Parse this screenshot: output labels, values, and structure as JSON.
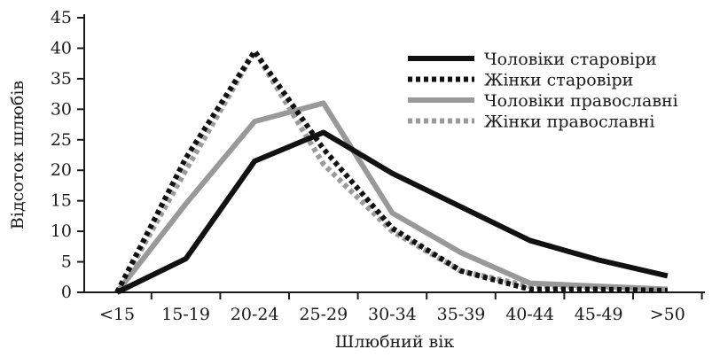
{
  "chart_data": {
    "type": "line",
    "title": "",
    "xlabel": "Шлюбний вік",
    "ylabel": "Відсоток шлюбів",
    "categories": [
      "<15",
      "15-19",
      "20-24",
      "25-29",
      "30-34",
      "35-39",
      "40-44",
      "45-49",
      ">50"
    ],
    "ylim": [
      0,
      45
    ],
    "yticks": [
      0,
      5,
      10,
      15,
      20,
      25,
      30,
      35,
      40,
      45
    ],
    "grid": false,
    "legend_position": "top-right",
    "series": [
      {
        "name": "Чоловіки старовіри",
        "color": "#111111",
        "dash": "solid",
        "values": [
          0,
          5.5,
          21.5,
          26.2,
          19.5,
          14,
          8.5,
          5.3,
          2.7
        ]
      },
      {
        "name": "Жінки старовіри",
        "color": "#111111",
        "dash": "dotted",
        "values": [
          0,
          22,
          39.5,
          23.5,
          10.5,
          3.5,
          0.5,
          0.5,
          0.3
        ]
      },
      {
        "name": "Чоловіки православні",
        "color": "#999999",
        "dash": "solid",
        "values": [
          0,
          14.5,
          28,
          31,
          13,
          6.5,
          1.5,
          1,
          0.5
        ]
      },
      {
        "name": "Жінки православні",
        "color": "#9a9a9a",
        "dash": "dotted",
        "values": [
          0,
          20,
          39.5,
          21,
          10,
          3.5,
          1,
          0.8,
          0.5
        ]
      }
    ]
  }
}
